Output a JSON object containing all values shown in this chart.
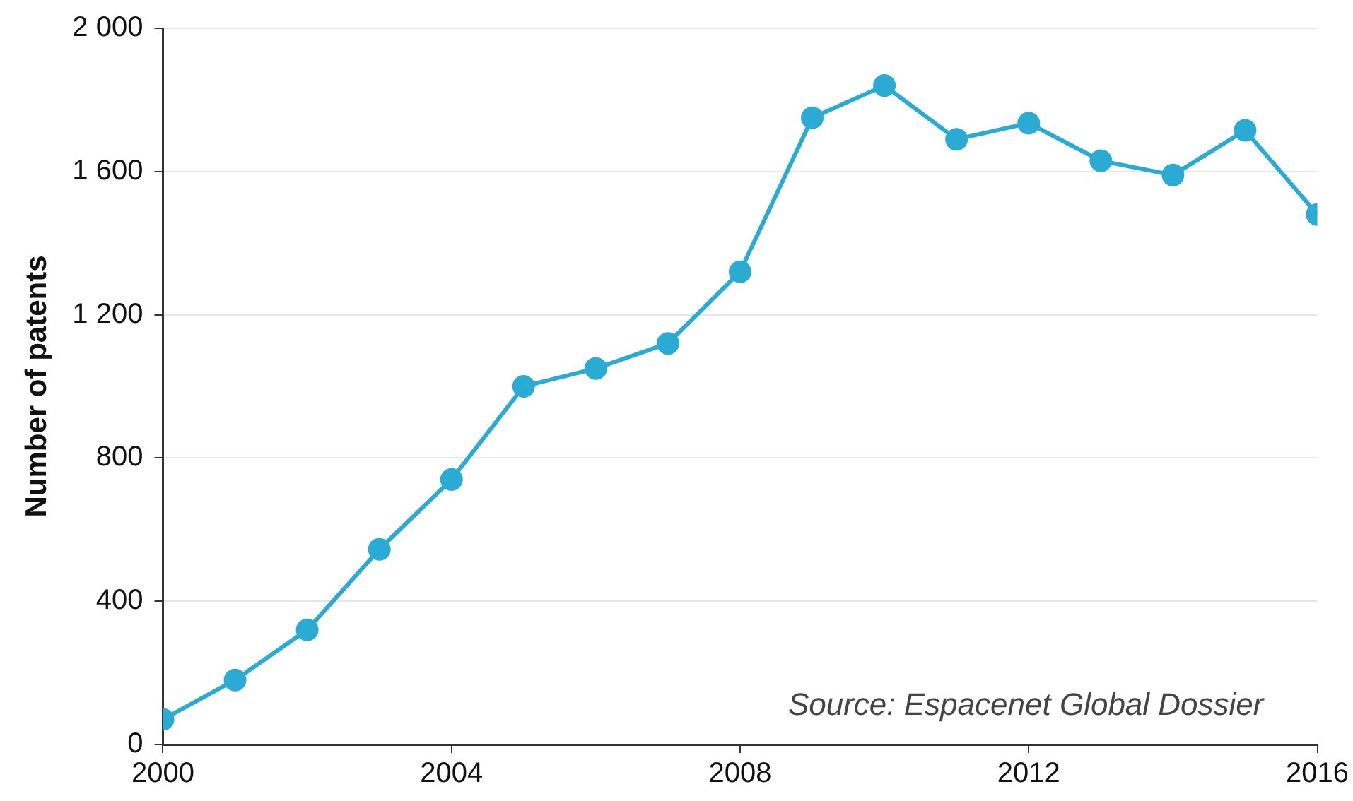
{
  "chart_data": {
    "type": "line",
    "ylabel": "Number of patents",
    "annotations": [
      "Source: Espacenet Global Dossier"
    ],
    "x": [
      2000,
      2001,
      2002,
      2003,
      2004,
      2005,
      2006,
      2007,
      2008,
      2009,
      2010,
      2011,
      2012,
      2013,
      2014,
      2015,
      2016
    ],
    "series": [
      {
        "color": "#29abd4",
        "values": [
          70,
          180,
          320,
          545,
          740,
          1000,
          1050,
          1120,
          1320,
          1750,
          1840,
          1690,
          1735,
          1630,
          1590,
          1715,
          1480
        ]
      }
    ],
    "xlim": [
      2000,
      2016
    ],
    "xticks": [
      2000,
      2004,
      2008,
      2012,
      2016
    ],
    "ylim": [
      0,
      2000
    ],
    "yticks": [
      0,
      400,
      800,
      {
        "value": 1200,
        "label": "1 200"
      },
      {
        "value": 1600,
        "label": "1 600"
      },
      {
        "value": 2000,
        "label": "2 000"
      }
    ],
    "grid": "y",
    "legend": false,
    "marker": "circle",
    "line_style": "solid"
  }
}
